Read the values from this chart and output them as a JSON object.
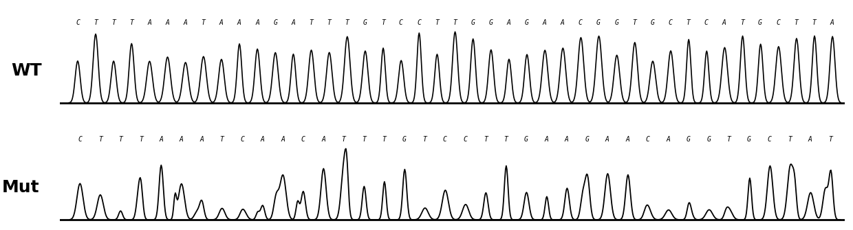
{
  "wt_sequence": "CTTTAAATAAAGATTTGTCCTTGGAGAACGGTGCTCATGCTTA",
  "mut_sequence": "CTTTAAATCAACATTTGTCCTTGAAGAACAGGTGCTAT",
  "wt_label": "WT",
  "mut_label": "Mut",
  "bg_color": "#ffffff",
  "trace_color": "#000000",
  "text_color": "#000000",
  "seq_fontsize": 7.0,
  "label_fontsize": 18,
  "fig_width": 12.4,
  "fig_height": 3.35,
  "dpi": 100
}
